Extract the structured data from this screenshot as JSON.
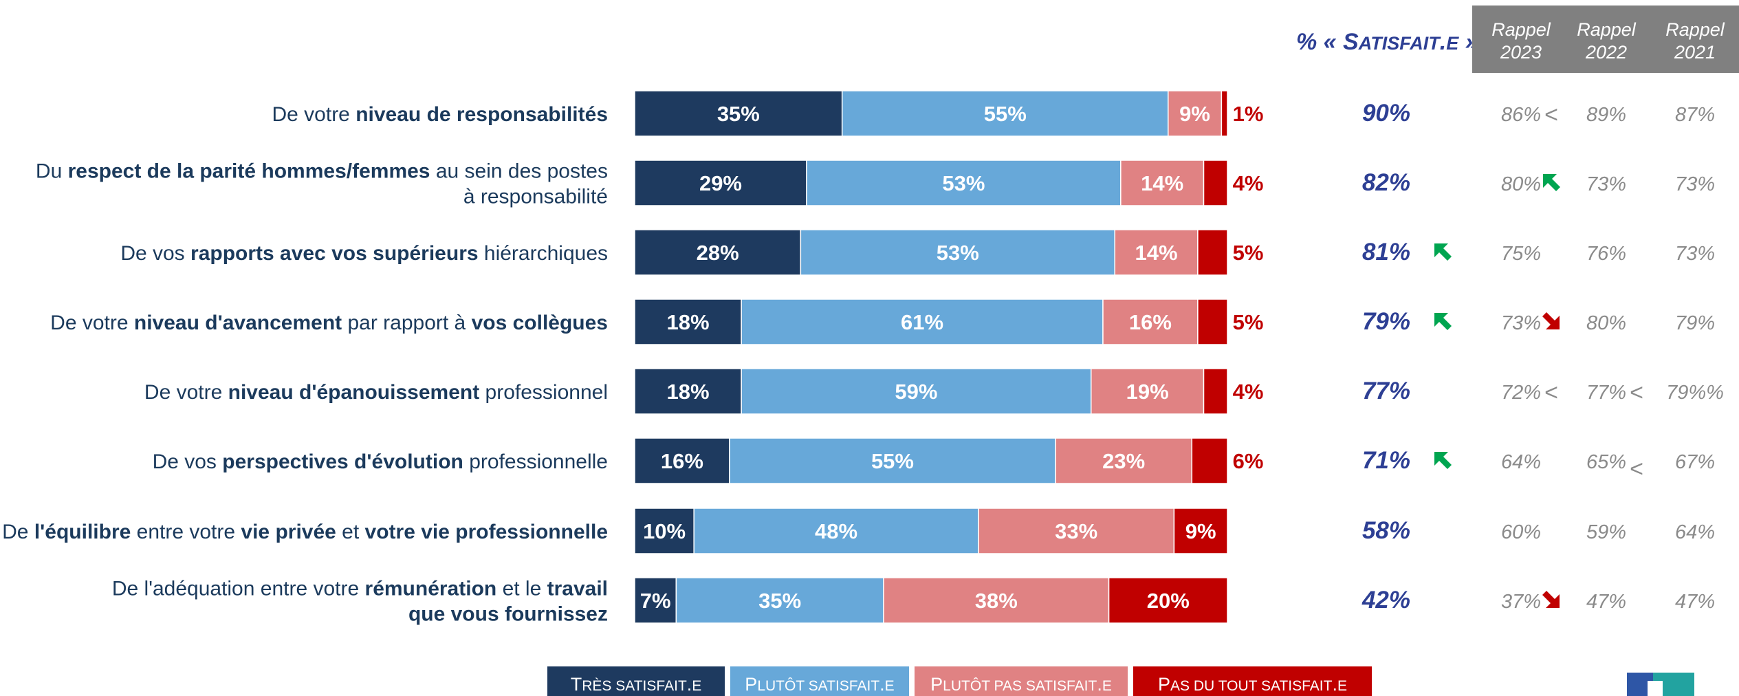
{
  "header": {
    "satisfied_pct_label": "% « Satisfait.e »",
    "rappel_columns": [
      "Rappel 2023",
      "Rappel 2022",
      "Rappel 2021"
    ]
  },
  "colors": {
    "tres_satisfait": "#1e3a5f",
    "plutot_satisfait": "#67a8d9",
    "plutot_pas_satisfait": "#e08283",
    "pas_du_tout_satisfait": "#c00000",
    "header_bg": "#808080",
    "total_text": "#2d3f94",
    "arrow_up": "#00a550",
    "arrow_down": "#c00000",
    "label_text": "#1b3a5c"
  },
  "chart_data": {
    "type": "bar",
    "orientation": "horizontal",
    "stacked": true,
    "xlim": [
      0,
      100
    ],
    "series": [
      {
        "name": "Très satisfait.e",
        "values": [
          35,
          29,
          28,
          18,
          18,
          16,
          10,
          7
        ]
      },
      {
        "name": "Plutôt satisfait.e",
        "values": [
          55,
          53,
          53,
          61,
          59,
          55,
          48,
          35
        ]
      },
      {
        "name": "Plutôt pas satisfait.e",
        "values": [
          9,
          14,
          14,
          16,
          19,
          23,
          33,
          38
        ]
      },
      {
        "name": "Pas du tout satisfait.e",
        "values": [
          1,
          4,
          5,
          5,
          4,
          6,
          9,
          20
        ]
      }
    ],
    "legend_position": "bottom",
    "rows": [
      {
        "label_lines": [
          [
            {
              "t": "De votre ",
              "b": false
            },
            {
              "t": "niveau de responsabilités",
              "b": true
            }
          ]
        ],
        "total": "90%",
        "trend": null,
        "rappel": [
          "86%",
          "89%",
          "87%"
        ],
        "rappel_marks": [
          "<",
          null,
          null
        ],
        "rappel_arrows": [
          null,
          null,
          null
        ]
      },
      {
        "label_lines": [
          [
            {
              "t": "Du ",
              "b": false
            },
            {
              "t": "respect de la parité hommes/femmes",
              "b": true
            },
            {
              "t": " au sein des postes",
              "b": false
            }
          ],
          [
            {
              "t": "à responsabilité",
              "b": false
            }
          ]
        ],
        "total": "82%",
        "trend": null,
        "rappel": [
          "80%",
          "73%",
          "73%"
        ],
        "rappel_marks": [
          null,
          null,
          null
        ],
        "rappel_arrows": [
          "up",
          null,
          null
        ]
      },
      {
        "label_lines": [
          [
            {
              "t": "De vos ",
              "b": false
            },
            {
              "t": "rapports avec vos supérieurs",
              "b": true
            },
            {
              "t": " hiérarchiques",
              "b": false
            }
          ]
        ],
        "total": "81%",
        "trend": "up",
        "rappel": [
          "75%",
          "76%",
          "73%"
        ],
        "rappel_marks": [
          null,
          null,
          null
        ],
        "rappel_arrows": [
          null,
          null,
          null
        ]
      },
      {
        "label_lines": [
          [
            {
              "t": "De votre ",
              "b": false
            },
            {
              "t": "niveau d'avancement",
              "b": true
            },
            {
              "t": " par rapport à ",
              "b": false
            },
            {
              "t": "vos collègues",
              "b": true
            }
          ]
        ],
        "total": "79%",
        "trend": "up",
        "rappel": [
          "73%",
          "80%",
          "79%"
        ],
        "rappel_marks": [
          null,
          null,
          null
        ],
        "rappel_arrows": [
          "down",
          null,
          null
        ]
      },
      {
        "label_lines": [
          [
            {
              "t": "De votre ",
              "b": false
            },
            {
              "t": "niveau d'épanouissement",
              "b": true
            },
            {
              "t": " professionnel",
              "b": false
            }
          ]
        ],
        "total": "77%",
        "trend": null,
        "rappel": [
          "72%",
          "77%",
          "79%%"
        ],
        "rappel_marks": [
          "<",
          "<",
          null
        ],
        "rappel_arrows": [
          null,
          null,
          null
        ]
      },
      {
        "label_lines": [
          [
            {
              "t": "De vos ",
              "b": false
            },
            {
              "t": "perspectives d'évolution",
              "b": true
            },
            {
              "t": " professionnelle",
              "b": false
            }
          ]
        ],
        "total": "71%",
        "trend": "up",
        "rappel": [
          "64%",
          "65%",
          "67%"
        ],
        "rappel_marks": [
          null,
          "<",
          null
        ],
        "rappel_arrows": [
          null,
          null,
          null
        ]
      },
      {
        "label_lines": [
          [
            {
              "t": "De ",
              "b": false
            },
            {
              "t": "l'équilibre",
              "b": true
            },
            {
              "t": " entre votre ",
              "b": false
            },
            {
              "t": "vie privée",
              "b": true
            },
            {
              "t": " et ",
              "b": false
            },
            {
              "t": "votre vie professionnelle",
              "b": true
            }
          ]
        ],
        "total": "58%",
        "trend": null,
        "rappel": [
          "60%",
          "59%",
          "64%"
        ],
        "rappel_marks": [
          null,
          null,
          null
        ],
        "rappel_arrows": [
          null,
          null,
          null
        ]
      },
      {
        "label_lines": [
          [
            {
              "t": "De l'adéquation entre votre ",
              "b": false
            },
            {
              "t": "rémunération",
              "b": true
            },
            {
              "t": " et le ",
              "b": false
            },
            {
              "t": "travail",
              "b": true
            }
          ],
          [
            {
              "t": "que vous fournissez",
              "b": true
            }
          ]
        ],
        "total": "42%",
        "trend": null,
        "rappel": [
          "37%",
          "47%",
          "47%"
        ],
        "rappel_marks": [
          null,
          null,
          null
        ],
        "rappel_arrows": [
          "down",
          null,
          null
        ]
      }
    ]
  }
}
